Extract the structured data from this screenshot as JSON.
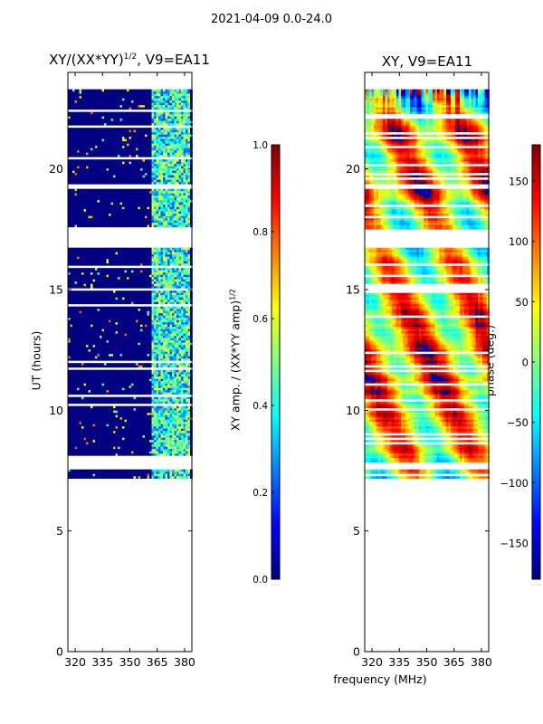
{
  "suptitle": "2021-04-09 0.0-24.0",
  "xlabel": "frequency (MHz)",
  "colors": {
    "jet": [
      "#000080",
      "#0000ff",
      "#0080ff",
      "#00ffff",
      "#80ff80",
      "#ffff00",
      "#ff8000",
      "#ff0000",
      "#800000"
    ],
    "frame": "#000000",
    "gap": "#ffffff"
  },
  "chart_data": [
    {
      "type": "heatmap",
      "title_base": "XY/(XX*YY)",
      "title_exp": "1/2",
      "title_suffix": ", V9=EA11",
      "xlabel": "",
      "ylabel": "UT (hours)",
      "xlim": [
        316,
        384
      ],
      "ylim": [
        0,
        24
      ],
      "xticks": [
        320,
        335,
        350,
        365,
        380
      ],
      "yticks": [
        0,
        5,
        10,
        15,
        20
      ],
      "data_ut_range": [
        7.2,
        23.3
      ],
      "quantity": "amplitude",
      "colorbar": {
        "label_base": "XY amp. / (XX*YY amp)",
        "label_exp": "1/2",
        "range": [
          0.0,
          1.0
        ],
        "ticks": [
          0.0,
          0.2,
          0.4,
          0.6,
          0.8,
          1.0
        ],
        "tick_labels": [
          "0.0",
          "0.2",
          "0.4",
          "0.6",
          "0.8",
          "1.0"
        ]
      }
    },
    {
      "type": "heatmap",
      "title_base": "XY, V9=EA11",
      "title_exp": "",
      "title_suffix": "",
      "xlabel": "frequency (MHz)",
      "ylabel": "",
      "xlim": [
        316,
        384
      ],
      "ylim": [
        0,
        24
      ],
      "xticks": [
        320,
        335,
        350,
        365,
        380
      ],
      "yticks": [
        0,
        5,
        10,
        15,
        20
      ],
      "data_ut_range": [
        7.2,
        23.3
      ],
      "quantity": "phase",
      "colorbar": {
        "label_base": "phase (deg.)",
        "label_exp": "",
        "range": [
          -180,
          180
        ],
        "ticks": [
          -150,
          -100,
          -50,
          0,
          50,
          100,
          150
        ],
        "tick_labels": [
          "−150",
          "−100",
          "−50",
          "0",
          "50",
          "100",
          "150"
        ]
      }
    }
  ]
}
